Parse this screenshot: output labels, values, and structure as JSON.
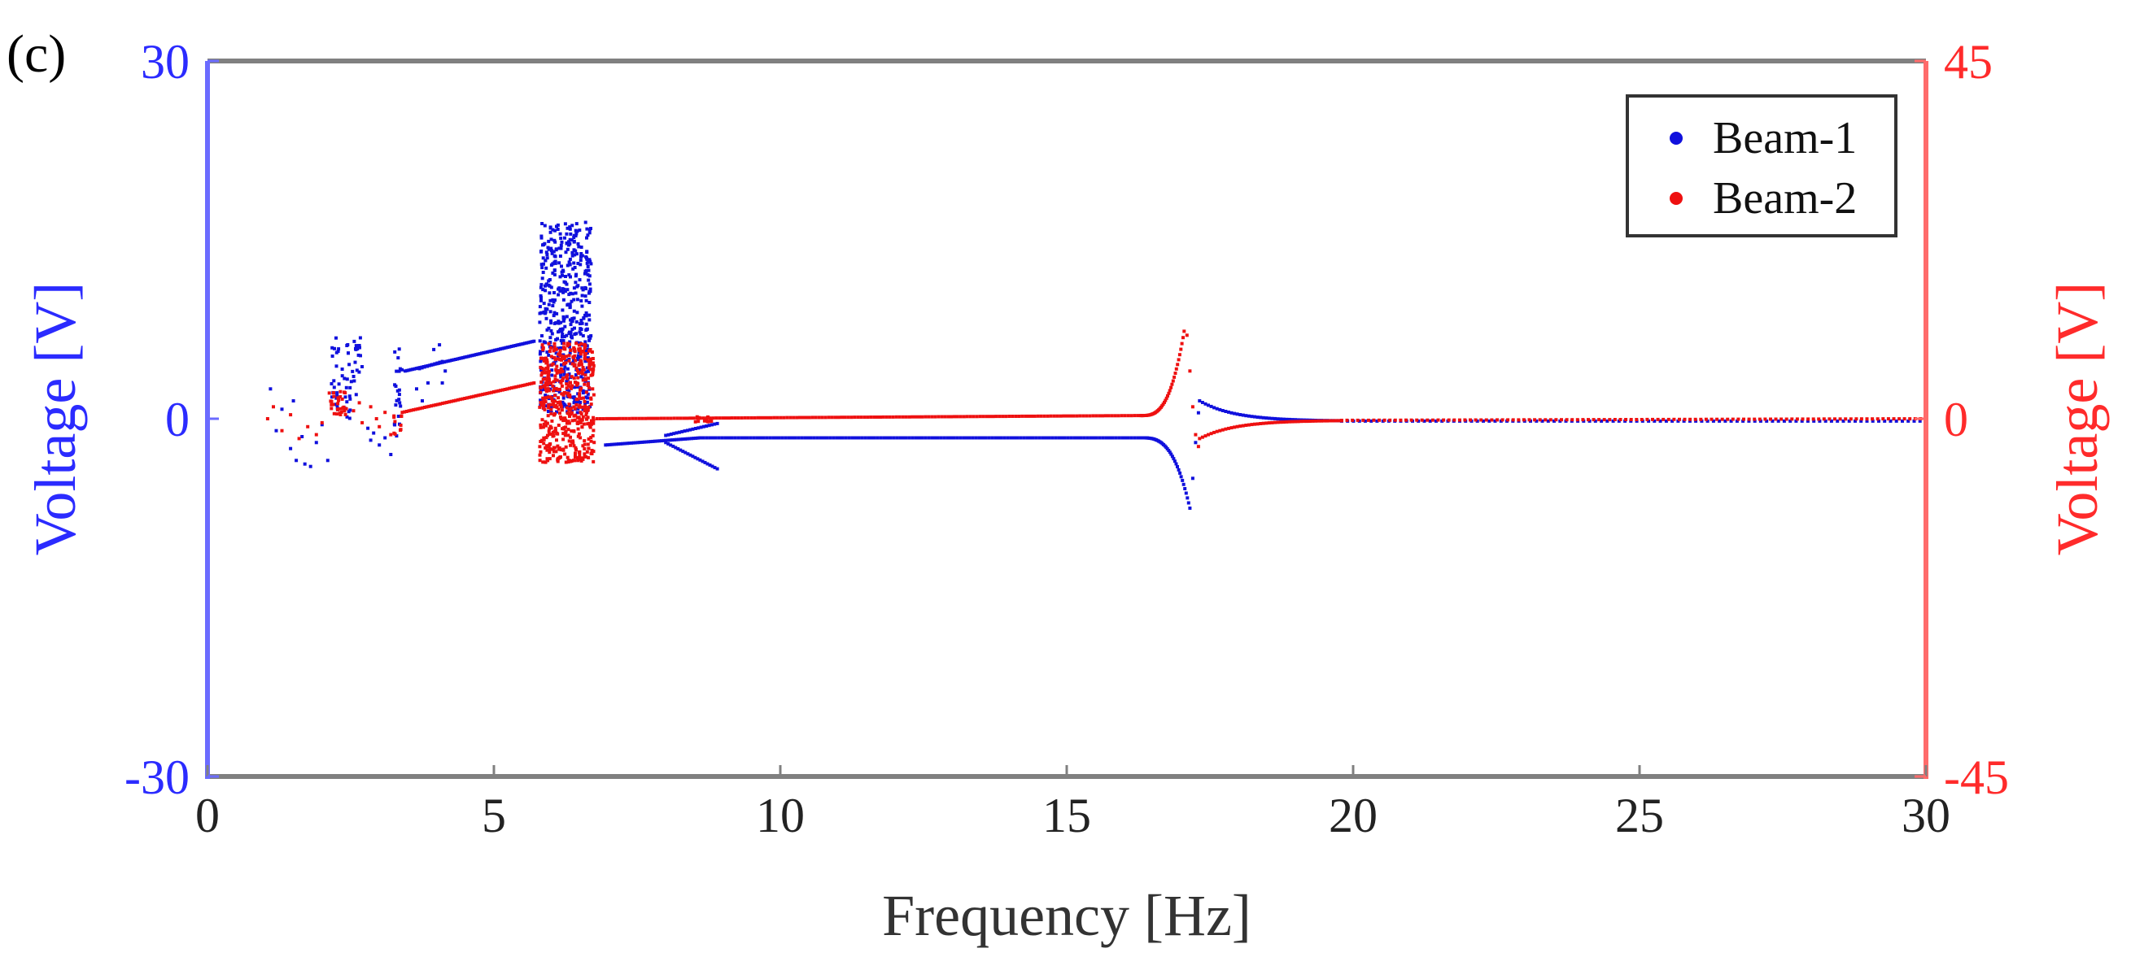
{
  "chart_data": {
    "type": "scatter",
    "panel_label": "(c)",
    "xlabel": "Frequency [Hz]",
    "ylabel_left": "Voltage [V]",
    "ylabel_right": "Voltage [V]",
    "xlim": [
      0,
      30
    ],
    "ylim_left": [
      -30,
      30
    ],
    "ylim_right": [
      -45,
      45
    ],
    "x_ticks": [
      "0",
      "5",
      "10",
      "15",
      "20",
      "25",
      "30"
    ],
    "x_tick_values": [
      0,
      5,
      10,
      15,
      20,
      25,
      30
    ],
    "y_left_ticks": [
      "30",
      "0",
      "-30"
    ],
    "y_left_tick_values": [
      30,
      0,
      -30
    ],
    "y_right_ticks": [
      "45",
      "0",
      "-45"
    ],
    "y_right_tick_values": [
      45,
      0,
      -45
    ],
    "grid": false,
    "legend_position": "top-right",
    "colors": {
      "left_axis": "#2b2bff",
      "right_axis": "#ff2b2b",
      "frame": "#808080",
      "beam1": "#1010dd",
      "beam2": "#ee1010"
    },
    "series": [
      {
        "name": "Beam-1",
        "axis": "left",
        "segments": [
          {
            "kind": "scatter",
            "x": [
              1.1,
              1.2,
              1.3,
              1.45,
              1.55,
              1.65,
              1.8,
              1.9,
              2.0,
              2.1,
              1.5,
              1.7
            ],
            "y": [
              2.5,
              -1.0,
              0.8,
              -2.5,
              -3.5,
              -1.5,
              -4.0,
              -2.0,
              -0.5,
              -3.5,
              1.5,
              -3.8
            ]
          },
          {
            "kind": "band",
            "x_start": 2.15,
            "x_end": 2.3,
            "y_min": -0.5,
            "y_max": 6.8,
            "n": 22
          },
          {
            "kind": "band",
            "x_start": 2.35,
            "x_end": 2.55,
            "y_min": 0.0,
            "y_max": 6.5,
            "n": 22
          },
          {
            "kind": "band",
            "x_start": 2.55,
            "x_end": 2.7,
            "y_min": 2.0,
            "y_max": 6.8,
            "n": 18
          },
          {
            "kind": "scatter",
            "x": [
              2.8,
              2.85,
              2.9,
              3.0,
              3.1,
              3.2
            ],
            "y": [
              -0.8,
              -1.8,
              -1.2,
              -2.2,
              -1.6,
              -3.0
            ]
          },
          {
            "kind": "band",
            "x_start": 3.25,
            "x_end": 3.4,
            "y_min": -1.5,
            "y_max": 6.5,
            "n": 22
          },
          {
            "kind": "line",
            "x_start": 3.45,
            "x_end": 5.7,
            "y_start": 4.0,
            "y_end": 6.5,
            "n": 70
          },
          {
            "kind": "scatter",
            "x": [
              3.65,
              3.75,
              3.85,
              3.95,
              4.05,
              4.1,
              4.15
            ],
            "y": [
              2.5,
              1.5,
              3.0,
              5.8,
              6.2,
              3.0,
              4.0
            ]
          },
          {
            "kind": "line",
            "x_start": 3.7,
            "x_end": 4.1,
            "y_start": 4.2,
            "y_end": 4.8,
            "n": 10
          },
          {
            "kind": "band",
            "x_start": 5.8,
            "x_end": 6.7,
            "y_min": 0.5,
            "y_max": 16.5,
            "n": 500
          },
          {
            "kind": "line",
            "x_start": 6.95,
            "x_end": 8.6,
            "y_start": -2.2,
            "y_end": -1.6,
            "n": 45
          },
          {
            "kind": "line",
            "x_start": 8.0,
            "x_end": 8.9,
            "y_start": -2.0,
            "y_end": -4.2,
            "n": 22
          },
          {
            "kind": "line",
            "x_start": 8.0,
            "x_end": 8.9,
            "y_start": -1.4,
            "y_end": -0.4,
            "n": 20
          },
          {
            "kind": "line",
            "x_start": 8.6,
            "x_end": 16.3,
            "y_start": -1.6,
            "y_end": -1.6,
            "n": 140
          },
          {
            "kind": "resonance",
            "x_start": 16.3,
            "x_end": 17.15,
            "y_start": -1.6,
            "y_end": -7.5,
            "n": 40
          },
          {
            "kind": "scatter",
            "x": [
              17.2,
              17.25,
              17.3
            ],
            "y": [
              -5.0,
              -2.0,
              0.5
            ]
          },
          {
            "kind": "decay",
            "x_start": 17.32,
            "x_end": 19.8,
            "y_start": 1.5,
            "y_end": -0.2,
            "n": 50
          },
          {
            "kind": "line",
            "x_start": 19.8,
            "x_end": 30.0,
            "y_start": -0.2,
            "y_end": -0.2,
            "n": 100
          }
        ]
      },
      {
        "name": "Beam-2",
        "axis": "right",
        "segments": [
          {
            "kind": "scatter",
            "x": [
              1.05,
              1.15,
              1.3,
              1.45,
              1.6,
              1.75,
              1.9,
              2.0
            ],
            "y": [
              0.0,
              1.5,
              -1.5,
              0.5,
              -2.5,
              -1.0,
              -2.0,
              -0.5
            ]
          },
          {
            "kind": "band",
            "x_start": 2.1,
            "x_end": 2.45,
            "y_min": 0.5,
            "y_max": 3.5,
            "n": 30
          },
          {
            "kind": "scatter",
            "x": [
              2.55,
              2.7,
              2.85,
              3.0,
              3.1,
              3.2,
              2.65,
              2.95
            ],
            "y": [
              1.0,
              -0.5,
              1.5,
              -1.0,
              0.8,
              -2.0,
              2.0,
              0.0
            ]
          },
          {
            "kind": "band",
            "x_start": 3.25,
            "x_end": 3.4,
            "y_min": -2.0,
            "y_max": 1.0,
            "n": 10
          },
          {
            "kind": "line",
            "x_start": 3.4,
            "x_end": 5.7,
            "y_start": 0.8,
            "y_end": 4.5,
            "n": 60
          },
          {
            "kind": "band",
            "x_start": 5.8,
            "x_end": 6.75,
            "y_min": -5.5,
            "y_max": 9.5,
            "n": 500
          },
          {
            "kind": "line",
            "x_start": 6.8,
            "x_end": 16.3,
            "y_start": 0.0,
            "y_end": 0.4,
            "n": 170
          },
          {
            "kind": "band",
            "x_start": 8.5,
            "x_end": 8.8,
            "y_min": -0.4,
            "y_max": 0.4,
            "n": 14
          },
          {
            "kind": "resonance",
            "x_start": 16.3,
            "x_end": 17.05,
            "y_start": 0.4,
            "y_end": 11.0,
            "n": 40
          },
          {
            "kind": "scatter",
            "x": [
              17.1,
              17.15,
              17.2,
              17.25,
              17.3
            ],
            "y": [
              10.5,
              6.0,
              1.5,
              -2.0,
              -3.5
            ]
          },
          {
            "kind": "decay",
            "x_start": 17.32,
            "x_end": 19.8,
            "y_start": -2.5,
            "y_end": -0.2,
            "n": 50
          },
          {
            "kind": "line",
            "x_start": 19.8,
            "x_end": 30.0,
            "y_start": -0.2,
            "y_end": 0.0,
            "n": 110
          }
        ]
      }
    ]
  }
}
